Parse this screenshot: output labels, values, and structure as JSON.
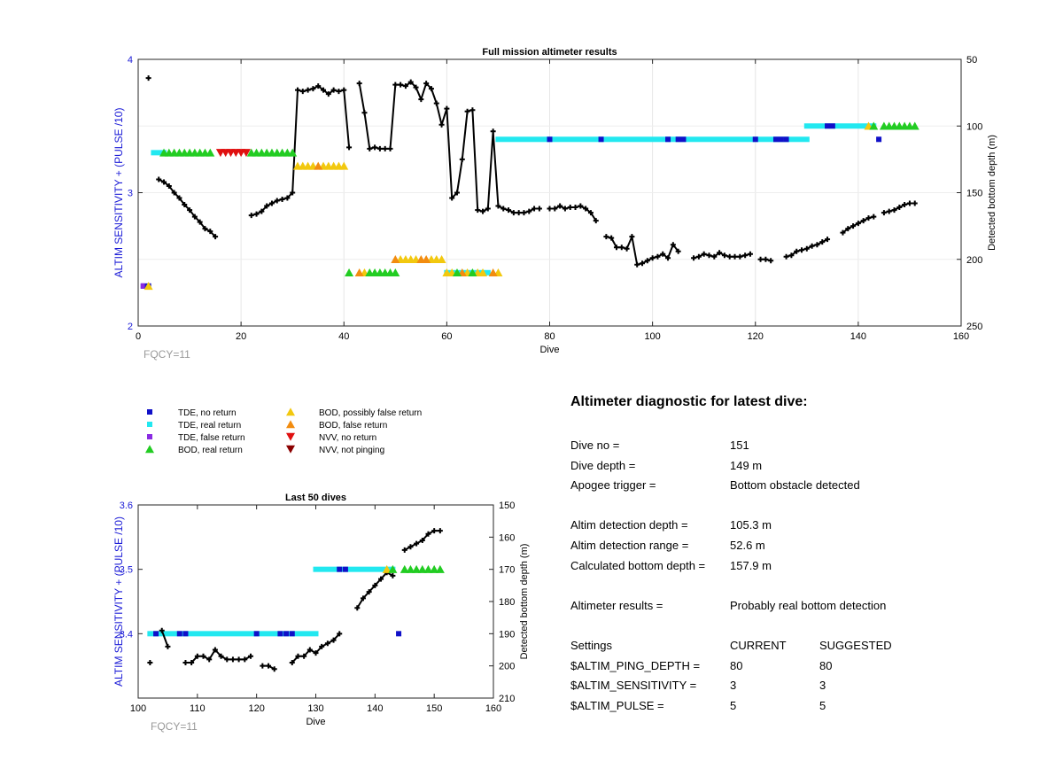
{
  "top_chart": {
    "title": "Full mission altimeter results",
    "xlabel": "Dive",
    "ylabel": "ALTIM SENSITIVITY + (PULSE /10)",
    "y2label": "Detected bottom depth (m)",
    "x_ticks": [
      "0",
      "20",
      "40",
      "60",
      "80",
      "100",
      "120",
      "140",
      "160"
    ],
    "y_ticks": [
      "2",
      "3",
      "4"
    ],
    "y2_ticks": [
      "50",
      "100",
      "150",
      "200",
      "250"
    ],
    "fqcy": "FQCY=11"
  },
  "bottom_chart": {
    "title": "Last 50 dives",
    "xlabel": "Dive",
    "ylabel": "ALTIM SENSITIVITY + (PULSE /10)",
    "y2label": "Detected bottom depth (m)",
    "x_ticks": [
      "100",
      "110",
      "120",
      "130",
      "140",
      "150",
      "160"
    ],
    "y_ticks": [
      "3.4",
      "3.5",
      "3.6"
    ],
    "y2_ticks": [
      "150",
      "160",
      "170",
      "180",
      "190",
      "200",
      "210"
    ],
    "fqcy": "FQCY=11"
  },
  "legend": [
    {
      "label": "TDE, no return",
      "color": "#1010c8",
      "shape": "square"
    },
    {
      "label": "TDE, real return",
      "color": "#22e8f0",
      "shape": "square"
    },
    {
      "label": "TDE, false return",
      "color": "#8a2be2",
      "shape": "square"
    },
    {
      "label": "BOD, real return",
      "color": "#22cc22",
      "shape": "triangle-up"
    },
    {
      "label": "BOD, possibly false return",
      "color": "#f2c80f",
      "shape": "triangle-up"
    },
    {
      "label": "BOD, false return",
      "color": "#f28c0f",
      "shape": "triangle-up"
    },
    {
      "label": "NVV, no return",
      "color": "#e01010",
      "shape": "triangle-down"
    },
    {
      "label": "NVV, not pinging",
      "color": "#8b0000",
      "shape": "triangle-down"
    }
  ],
  "diagnostic": {
    "title": "Altimeter diagnostic for latest dive:",
    "dive_no": {
      "k": "Dive no =",
      "v": "151"
    },
    "dive_depth": {
      "k": "Dive depth =",
      "v": "149 m"
    },
    "apogee": {
      "k": "Apogee trigger =",
      "v": "Bottom obstacle detected"
    },
    "altim_det_depth": {
      "k": "Altim detection depth =",
      "v": "105.3 m"
    },
    "altim_det_range": {
      "k": "Altim detection range =",
      "v": "52.6 m"
    },
    "calc_bottom": {
      "k": "Calculated bottom depth =",
      "v": "157.9 m"
    },
    "results": {
      "k": "Altimeter results =",
      "v": "Probably real bottom detection"
    },
    "settings_header": {
      "k": "Settings",
      "v": "CURRENT",
      "s": "SUGGESTED"
    },
    "ping_depth": {
      "k": "$ALTIM_PING_DEPTH =",
      "v": "80",
      "s": "80"
    },
    "sensitivity": {
      "k": "$ALTIM_SENSITIVITY =",
      "v": "3",
      "s": "3"
    },
    "pulse": {
      "k": "$ALTIM_PULSE =",
      "v": "5",
      "s": "5"
    }
  },
  "chart_data": [
    {
      "type": "scatter",
      "title": "Full mission altimeter results",
      "xlabel": "Dive",
      "ylabel": "ALTIM SENSITIVITY + (PULSE /10)",
      "y2label": "Detected bottom depth (m)",
      "xlim": [
        0,
        160
      ],
      "ylim": [
        2,
        4
      ],
      "y2lim": [
        250,
        50
      ],
      "grid": true,
      "bottom_depth": [
        [
          2,
          64
        ],
        [
          4,
          140
        ],
        [
          5,
          142
        ],
        [
          6,
          145
        ],
        [
          7,
          150
        ],
        [
          8,
          154
        ],
        [
          9,
          159
        ],
        [
          10,
          163
        ],
        [
          11,
          168
        ],
        [
          12,
          172
        ],
        [
          13,
          177
        ],
        [
          14,
          179
        ],
        [
          15,
          183
        ],
        [
          22,
          167
        ],
        [
          23,
          166
        ],
        [
          24,
          164
        ],
        [
          25,
          160
        ],
        [
          26,
          158
        ],
        [
          27,
          156
        ],
        [
          28,
          155
        ],
        [
          29,
          154
        ],
        [
          30,
          150
        ],
        [
          31,
          73
        ],
        [
          32,
          74
        ],
        [
          33,
          73
        ],
        [
          34,
          72
        ],
        [
          35,
          70
        ],
        [
          36,
          73
        ],
        [
          37,
          76
        ],
        [
          38,
          73
        ],
        [
          39,
          74
        ],
        [
          40,
          73
        ],
        [
          41,
          116
        ],
        [
          43,
          68
        ],
        [
          44,
          90
        ],
        [
          45,
          117
        ],
        [
          46,
          116
        ],
        [
          47,
          117
        ],
        [
          48,
          117
        ],
        [
          49,
          117
        ],
        [
          50,
          69
        ],
        [
          51,
          69
        ],
        [
          52,
          70
        ],
        [
          53,
          67
        ],
        [
          54,
          71
        ],
        [
          55,
          80
        ],
        [
          56,
          68
        ],
        [
          57,
          72
        ],
        [
          58,
          83
        ],
        [
          59,
          99
        ],
        [
          60,
          87
        ],
        [
          61,
          154
        ],
        [
          62,
          150
        ],
        [
          63,
          125
        ],
        [
          64,
          89
        ],
        [
          65,
          88
        ],
        [
          66,
          163
        ],
        [
          67,
          164
        ],
        [
          68,
          162
        ],
        [
          69,
          104
        ],
        [
          70,
          160
        ],
        [
          71,
          162
        ],
        [
          72,
          163
        ],
        [
          73,
          165
        ],
        [
          74,
          165
        ],
        [
          75,
          165
        ],
        [
          76,
          164
        ],
        [
          77,
          162
        ],
        [
          78,
          162
        ],
        [
          80,
          162
        ],
        [
          81,
          162
        ],
        [
          82,
          160
        ],
        [
          83,
          162
        ],
        [
          84,
          161
        ],
        [
          85,
          161
        ],
        [
          86,
          160
        ],
        [
          87,
          162
        ],
        [
          88,
          165
        ],
        [
          89,
          171
        ],
        [
          91,
          183
        ],
        [
          92,
          184
        ],
        [
          93,
          191
        ],
        [
          94,
          191
        ],
        [
          95,
          192
        ],
        [
          96,
          183
        ],
        [
          97,
          204
        ],
        [
          98,
          203
        ],
        [
          99,
          201
        ],
        [
          100,
          199
        ],
        [
          101,
          198
        ],
        [
          102,
          196
        ],
        [
          103,
          199
        ],
        [
          104,
          189
        ],
        [
          105,
          194
        ],
        [
          108,
          199
        ],
        [
          109,
          198
        ],
        [
          110,
          196
        ],
        [
          111,
          197
        ],
        [
          112,
          198
        ],
        [
          113,
          195
        ],
        [
          114,
          197
        ],
        [
          115,
          198
        ],
        [
          116,
          198
        ],
        [
          117,
          198
        ],
        [
          118,
          197
        ],
        [
          119,
          196
        ],
        [
          121,
          200
        ],
        [
          122,
          200
        ],
        [
          123,
          201
        ],
        [
          126,
          198
        ],
        [
          127,
          197
        ],
        [
          128,
          194
        ],
        [
          129,
          193
        ],
        [
          130,
          192
        ],
        [
          131,
          190
        ],
        [
          132,
          189
        ],
        [
          133,
          187
        ],
        [
          134,
          185
        ],
        [
          137,
          180
        ],
        [
          138,
          177
        ],
        [
          139,
          175
        ],
        [
          140,
          173
        ],
        [
          141,
          171
        ],
        [
          142,
          169
        ],
        [
          143,
          168
        ],
        [
          145,
          165
        ],
        [
          146,
          164
        ],
        [
          147,
          163
        ],
        [
          148,
          161
        ],
        [
          149,
          159
        ],
        [
          150,
          158
        ],
        [
          151,
          158
        ]
      ],
      "tde_no_return_x": [
        1,
        2,
        80,
        90,
        103,
        105,
        106,
        120,
        124,
        125,
        126,
        134,
        135,
        144
      ],
      "tde_real_return": [
        {
          "x_from": 3,
          "x_to": 5,
          "y": 3.3
        },
        {
          "x_from": 70,
          "x_to": 130,
          "y": 3.4
        },
        {
          "x_from": 130,
          "x_to": 143,
          "y": 3.5
        },
        {
          "x_from": 60,
          "x_to": 68,
          "y": 2.4
        }
      ],
      "bod_real_return": [
        [
          5,
          3.3
        ],
        [
          6,
          3.3
        ],
        [
          7,
          3.3
        ],
        [
          8,
          3.3
        ],
        [
          9,
          3.3
        ],
        [
          10,
          3.3
        ],
        [
          11,
          3.3
        ],
        [
          12,
          3.3
        ],
        [
          13,
          3.3
        ],
        [
          14,
          3.3
        ],
        [
          22,
          3.3
        ],
        [
          23,
          3.3
        ],
        [
          24,
          3.3
        ],
        [
          25,
          3.3
        ],
        [
          26,
          3.3
        ],
        [
          27,
          3.3
        ],
        [
          28,
          3.3
        ],
        [
          29,
          3.3
        ],
        [
          30,
          3.3
        ],
        [
          41,
          2.4
        ],
        [
          45,
          2.4
        ],
        [
          46,
          2.4
        ],
        [
          47,
          2.4
        ],
        [
          48,
          2.4
        ],
        [
          49,
          2.4
        ],
        [
          50,
          2.4
        ],
        [
          62,
          2.4
        ],
        [
          65,
          2.4
        ],
        [
          143,
          3.5
        ],
        [
          145,
          3.5
        ],
        [
          146,
          3.5
        ],
        [
          147,
          3.5
        ],
        [
          148,
          3.5
        ],
        [
          149,
          3.5
        ],
        [
          150,
          3.5
        ],
        [
          151,
          3.5
        ]
      ],
      "bod_possibly_false": [
        [
          2,
          2.3
        ],
        [
          31,
          3.2
        ],
        [
          32,
          3.2
        ],
        [
          33,
          3.2
        ],
        [
          34,
          3.2
        ],
        [
          36,
          3.2
        ],
        [
          37,
          3.2
        ],
        [
          38,
          3.2
        ],
        [
          39,
          3.2
        ],
        [
          40,
          3.2
        ],
        [
          44,
          2.4
        ],
        [
          51,
          2.5
        ],
        [
          52,
          2.5
        ],
        [
          53,
          2.5
        ],
        [
          54,
          2.5
        ],
        [
          57,
          2.5
        ],
        [
          58,
          2.5
        ],
        [
          59,
          2.5
        ],
        [
          60,
          2.4
        ],
        [
          61,
          2.4
        ],
        [
          64,
          2.4
        ],
        [
          66,
          2.4
        ],
        [
          67,
          2.4
        ],
        [
          70,
          2.4
        ],
        [
          142,
          3.5
        ]
      ],
      "bod_false": [
        [
          35,
          3.2
        ],
        [
          43,
          2.4
        ],
        [
          50,
          2.5
        ],
        [
          55,
          2.5
        ],
        [
          56,
          2.5
        ],
        [
          63,
          2.4
        ],
        [
          69,
          2.4
        ]
      ],
      "tde_false_return_x": [
        1
      ],
      "nvv_no_return": [
        [
          16,
          3.3
        ],
        [
          17,
          3.3
        ],
        [
          18,
          3.3
        ],
        [
          19,
          3.3
        ],
        [
          20,
          3.3
        ],
        [
          21,
          3.3
        ]
      ]
    },
    {
      "type": "scatter",
      "title": "Last 50 dives",
      "xlabel": "Dive",
      "ylabel": "ALTIM SENSITIVITY + (PULSE /10)",
      "y2label": "Detected bottom depth (m)",
      "xlim": [
        100,
        160
      ],
      "ylim": [
        3.3,
        3.6
      ],
      "y2lim": [
        210,
        150
      ],
      "grid": false,
      "bottom_depth": [
        [
          102,
          199
        ],
        [
          104,
          189
        ],
        [
          105,
          194
        ],
        [
          108,
          199
        ],
        [
          109,
          199
        ],
        [
          110,
          197
        ],
        [
          111,
          197
        ],
        [
          112,
          198
        ],
        [
          113,
          195
        ],
        [
          114,
          197
        ],
        [
          115,
          198
        ],
        [
          116,
          198
        ],
        [
          117,
          198
        ],
        [
          118,
          198
        ],
        [
          119,
          197
        ],
        [
          121,
          200
        ],
        [
          122,
          200
        ],
        [
          123,
          201
        ],
        [
          126,
          199
        ],
        [
          127,
          197
        ],
        [
          128,
          197
        ],
        [
          129,
          195
        ],
        [
          130,
          196
        ],
        [
          131,
          194
        ],
        [
          132,
          193
        ],
        [
          133,
          192
        ],
        [
          134,
          190
        ],
        [
          137,
          182
        ],
        [
          138,
          179
        ],
        [
          139,
          177
        ],
        [
          140,
          175
        ],
        [
          141,
          173
        ],
        [
          142,
          171
        ],
        [
          143,
          172
        ],
        [
          145,
          164
        ],
        [
          146,
          163
        ],
        [
          147,
          162
        ],
        [
          148,
          161
        ],
        [
          149,
          159
        ],
        [
          150,
          158
        ],
        [
          151,
          158
        ]
      ],
      "tde_no_return_x": [
        103,
        107,
        108,
        120,
        124,
        125,
        126,
        134,
        135,
        144
      ],
      "tde_real_return": [
        {
          "x_from": 102,
          "x_to": 130,
          "y": 3.4
        },
        {
          "x_from": 130,
          "x_to": 143,
          "y": 3.5
        }
      ],
      "bod_real_return": [
        [
          143,
          3.5
        ],
        [
          145,
          3.5
        ],
        [
          146,
          3.5
        ],
        [
          147,
          3.5
        ],
        [
          148,
          3.5
        ],
        [
          149,
          3.5
        ],
        [
          150,
          3.5
        ],
        [
          151,
          3.5
        ]
      ],
      "bod_possibly_false": [
        [
          142,
          3.5
        ]
      ]
    }
  ]
}
